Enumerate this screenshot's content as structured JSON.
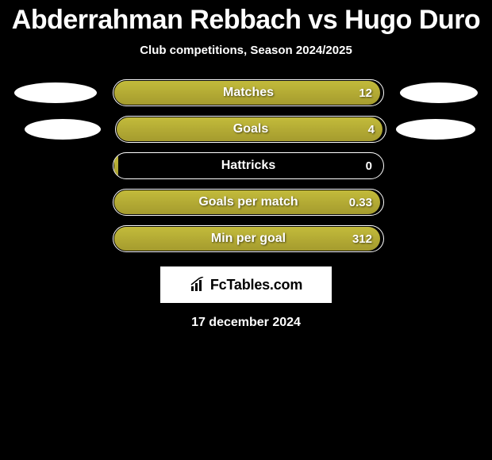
{
  "header": {
    "title": "Abderrahman Rebbach vs Hugo Duro",
    "subtitle": "Club competitions, Season 2024/2025"
  },
  "colors": {
    "bar_fill_top": "#c3bb3b",
    "bar_fill_bottom": "#a59b2e",
    "bar_border": "#ffffff",
    "background": "#000000",
    "text": "#ffffff"
  },
  "stats": [
    {
      "label": "Matches",
      "value": "12",
      "fill_pct": 99,
      "show_left_ellipse": true,
      "show_right_ellipse": true,
      "ellipse_class_left": "left",
      "ellipse_class_right": "right"
    },
    {
      "label": "Goals",
      "value": "4",
      "fill_pct": 99,
      "show_left_ellipse": true,
      "show_right_ellipse": true,
      "ellipse_class_left": "small-left",
      "ellipse_class_right": "small-right"
    },
    {
      "label": "Hattricks",
      "value": "0",
      "fill_pct": 2,
      "show_left_ellipse": false,
      "show_right_ellipse": false,
      "ellipse_class_left": "left",
      "ellipse_class_right": "right"
    },
    {
      "label": "Goals per match",
      "value": "0.33",
      "fill_pct": 99,
      "show_left_ellipse": false,
      "show_right_ellipse": false,
      "ellipse_class_left": "left",
      "ellipse_class_right": "right"
    },
    {
      "label": "Min per goal",
      "value": "312",
      "fill_pct": 99,
      "show_left_ellipse": false,
      "show_right_ellipse": false,
      "ellipse_class_left": "left",
      "ellipse_class_right": "right"
    }
  ],
  "branding": {
    "icon_name": "bar-chart-icon",
    "text": "FcTables.com"
  },
  "footer": {
    "date": "17 december 2024"
  }
}
